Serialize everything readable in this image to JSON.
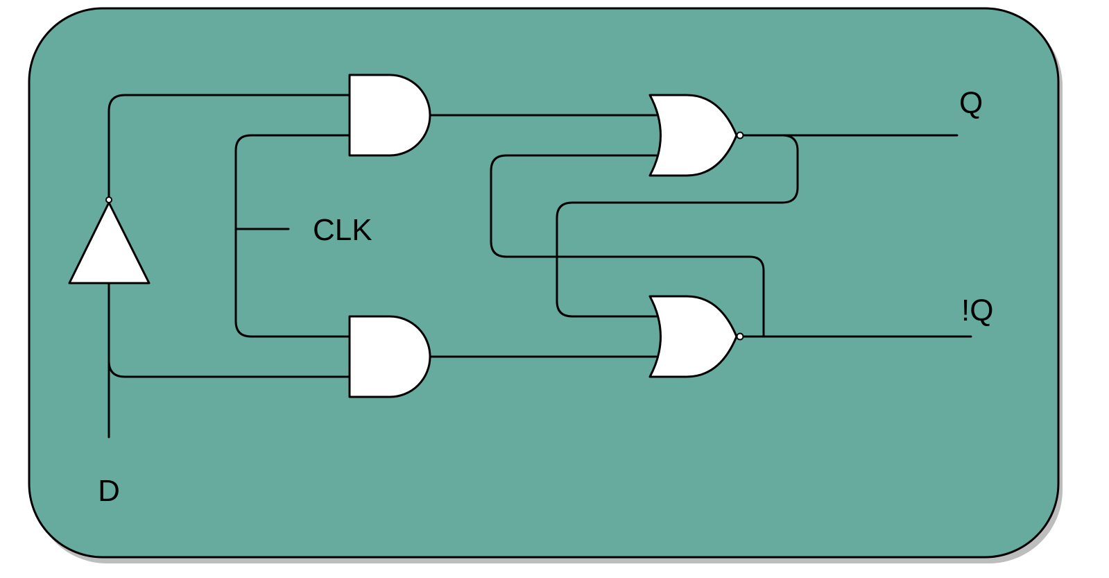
{
  "colors": {
    "panel_fill": "#67AB9F",
    "panel_shadow": "#bdbdbd",
    "gate_fill": "#FFFFFF",
    "stroke": "#000000"
  },
  "labels": {
    "d": "D",
    "clk": "CLK",
    "q": "Q",
    "q_not": "!Q"
  },
  "components": {
    "inverter": "not-gate",
    "and_gates": [
      "and-gate",
      "and-gate"
    ],
    "nor_gates": [
      "nor-gate",
      "nor-gate"
    ]
  }
}
